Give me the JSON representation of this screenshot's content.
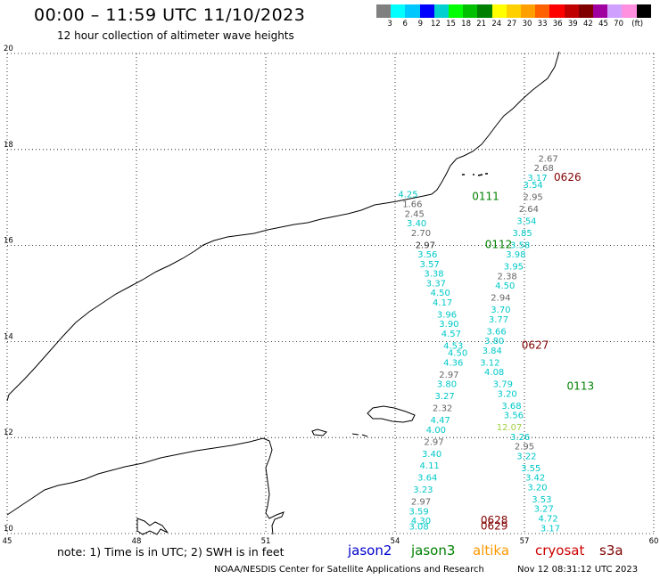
{
  "header": {
    "title": "00:00 – 11:59 UTC 11/10/2023",
    "subtitle": "12 hour collection of altimeter wave heights"
  },
  "color_scale": {
    "colors": [
      "#808080",
      "#00ffff",
      "#00c8ff",
      "#0000ff",
      "#00d0d0",
      "#00ff00",
      "#00c000",
      "#008000",
      "#ffff00",
      "#ffd000",
      "#ffa000",
      "#ff6000",
      "#ff0000",
      "#c00000",
      "#800000",
      "#a000a0",
      "#d0a0ff",
      "#ff90e0",
      "#000000"
    ],
    "labels": [
      "3",
      "6",
      "9",
      "12",
      "15",
      "18",
      "21",
      "24",
      "27",
      "30",
      "33",
      "36",
      "39",
      "42",
      "45",
      "70",
      "(ft)"
    ]
  },
  "axes": {
    "lat_labels": [
      "20",
      "18",
      "16",
      "14",
      "12",
      "10"
    ],
    "lon_labels": [
      "45",
      "48",
      "51",
      "54",
      "57",
      "60"
    ]
  },
  "track_colors": {
    "jason3": "#008000",
    "cryosat": "#800000",
    "cyan": "#00c8c8",
    "gray": "#666666"
  },
  "chart_data": {
    "type": "scatter",
    "x_range": [
      45,
      60
    ],
    "y_range": [
      10,
      20
    ],
    "pass_labels": [
      {
        "text": "0626",
        "lon": 58.0,
        "lat": 17.35,
        "mission": "cryosat"
      },
      {
        "text": "0111",
        "lon": 56.1,
        "lat": 16.95,
        "mission": "jason3"
      },
      {
        "text": "0112",
        "lon": 56.4,
        "lat": 15.95,
        "mission": "jason3"
      },
      {
        "text": "0627",
        "lon": 57.25,
        "lat": 13.85,
        "mission": "cryosat"
      },
      {
        "text": "0113",
        "lon": 58.3,
        "lat": 13.0,
        "mission": "jason3"
      },
      {
        "text": "0628",
        "lon": 56.3,
        "lat": 10.2,
        "mission": "cryosat"
      },
      {
        "text": "0629",
        "lon": 56.3,
        "lat": 10.08,
        "mission": "cryosat"
      }
    ],
    "observations": [
      {
        "v": "2.67",
        "lon": 57.55,
        "lat": 17.75,
        "c": "gray"
      },
      {
        "v": "2.68",
        "lon": 57.45,
        "lat": 17.55,
        "c": "gray"
      },
      {
        "v": "3.17",
        "lon": 57.3,
        "lat": 17.35,
        "c": "cyan"
      },
      {
        "v": "3.54",
        "lon": 57.2,
        "lat": 17.2,
        "c": "cyan"
      },
      {
        "v": "2.95",
        "lon": 57.2,
        "lat": 16.95,
        "c": "gray"
      },
      {
        "v": "2.64",
        "lon": 57.1,
        "lat": 16.7,
        "c": "gray"
      },
      {
        "v": "3.54",
        "lon": 57.05,
        "lat": 16.45,
        "c": "cyan"
      },
      {
        "v": "3.85",
        "lon": 56.95,
        "lat": 16.2,
        "c": "cyan"
      },
      {
        "v": "3.58",
        "lon": 56.9,
        "lat": 15.95,
        "c": "cyan"
      },
      {
        "v": "3.98",
        "lon": 56.8,
        "lat": 15.75,
        "c": "cyan"
      },
      {
        "v": "3.95",
        "lon": 56.75,
        "lat": 15.5,
        "c": "cyan"
      },
      {
        "v": "2.38",
        "lon": 56.6,
        "lat": 15.3,
        "c": "gray"
      },
      {
        "v": "4.50",
        "lon": 56.55,
        "lat": 15.1,
        "c": "cyan"
      },
      {
        "v": "2.94",
        "lon": 56.45,
        "lat": 14.85,
        "c": "gray"
      },
      {
        "v": "3.70",
        "lon": 56.45,
        "lat": 14.6,
        "c": "cyan"
      },
      {
        "v": "3.77",
        "lon": 56.4,
        "lat": 14.4,
        "c": "cyan"
      },
      {
        "v": "3.66",
        "lon": 56.35,
        "lat": 14.15,
        "c": "cyan"
      },
      {
        "v": "3.80",
        "lon": 56.3,
        "lat": 13.95,
        "c": "cyan"
      },
      {
        "v": "3.84",
        "lon": 56.25,
        "lat": 13.75,
        "c": "cyan"
      },
      {
        "v": "3.12",
        "lon": 56.2,
        "lat": 13.5,
        "c": "cyan"
      },
      {
        "v": "4.08",
        "lon": 56.3,
        "lat": 13.3,
        "c": "cyan"
      },
      {
        "v": "3.79",
        "lon": 56.5,
        "lat": 13.05,
        "c": "cyan"
      },
      {
        "v": "3.20",
        "lon": 56.6,
        "lat": 12.85,
        "c": "cyan"
      },
      {
        "v": "3.68",
        "lon": 56.7,
        "lat": 12.6,
        "c": "cyan"
      },
      {
        "v": "3.56",
        "lon": 56.75,
        "lat": 12.4,
        "c": "cyan"
      },
      {
        "v": "12.07",
        "lon": 56.65,
        "lat": 12.15,
        "c": "yellowgreen"
      },
      {
        "v": "3.26",
        "lon": 56.9,
        "lat": 11.95,
        "c": "cyan"
      },
      {
        "v": "2.95",
        "lon": 57.0,
        "lat": 11.75,
        "c": "gray"
      },
      {
        "v": "3.22",
        "lon": 57.05,
        "lat": 11.55,
        "c": "cyan"
      },
      {
        "v": "3.55",
        "lon": 57.15,
        "lat": 11.3,
        "c": "cyan"
      },
      {
        "v": "3.42",
        "lon": 57.25,
        "lat": 11.1,
        "c": "cyan"
      },
      {
        "v": "3.20",
        "lon": 57.3,
        "lat": 10.9,
        "c": "cyan"
      },
      {
        "v": "3.53",
        "lon": 57.4,
        "lat": 10.65,
        "c": "cyan"
      },
      {
        "v": "3.27",
        "lon": 57.45,
        "lat": 10.45,
        "c": "cyan"
      },
      {
        "v": "4.72",
        "lon": 57.55,
        "lat": 10.25,
        "c": "cyan"
      },
      {
        "v": "3.17",
        "lon": 57.6,
        "lat": 10.05,
        "c": "cyan"
      },
      {
        "v": "4.25",
        "lon": 54.3,
        "lat": 17.0,
        "c": "cyan"
      },
      {
        "v": "1.66",
        "lon": 54.4,
        "lat": 16.8,
        "c": "gray"
      },
      {
        "v": "2.45",
        "lon": 54.45,
        "lat": 16.6,
        "c": "gray"
      },
      {
        "v": "3.40",
        "lon": 54.5,
        "lat": 16.4,
        "c": "cyan"
      },
      {
        "v": "2.70",
        "lon": 54.6,
        "lat": 16.2,
        "c": "gray"
      },
      {
        "v": "2.97",
        "lon": 54.7,
        "lat": 15.95,
        "c": "black"
      },
      {
        "v": "3.56",
        "lon": 54.75,
        "lat": 15.75,
        "c": "cyan"
      },
      {
        "v": "3.57",
        "lon": 54.8,
        "lat": 15.55,
        "c": "cyan"
      },
      {
        "v": "3.38",
        "lon": 54.9,
        "lat": 15.35,
        "c": "cyan"
      },
      {
        "v": "3.37",
        "lon": 54.95,
        "lat": 15.15,
        "c": "cyan"
      },
      {
        "v": "4.50",
        "lon": 55.05,
        "lat": 14.95,
        "c": "cyan"
      },
      {
        "v": "4.17",
        "lon": 55.1,
        "lat": 14.75,
        "c": "cyan"
      },
      {
        "v": "3.96",
        "lon": 55.2,
        "lat": 14.5,
        "c": "cyan"
      },
      {
        "v": "3.90",
        "lon": 55.25,
        "lat": 14.3,
        "c": "cyan"
      },
      {
        "v": "4.57",
        "lon": 55.3,
        "lat": 14.1,
        "c": "cyan"
      },
      {
        "v": "4.53",
        "lon": 55.35,
        "lat": 13.85,
        "c": "cyan"
      },
      {
        "v": "4.50",
        "lon": 55.45,
        "lat": 13.7,
        "c": "cyan"
      },
      {
        "v": "4.36",
        "lon": 55.35,
        "lat": 13.5,
        "c": "cyan"
      },
      {
        "v": "2.97",
        "lon": 55.25,
        "lat": 13.25,
        "c": "gray"
      },
      {
        "v": "3.80",
        "lon": 55.2,
        "lat": 13.05,
        "c": "cyan"
      },
      {
        "v": "3.27",
        "lon": 55.15,
        "lat": 12.8,
        "c": "cyan"
      },
      {
        "v": "2.32",
        "lon": 55.1,
        "lat": 12.55,
        "c": "gray"
      },
      {
        "v": "4.47",
        "lon": 55.05,
        "lat": 12.3,
        "c": "cyan"
      },
      {
        "v": "4.00",
        "lon": 54.95,
        "lat": 12.1,
        "c": "cyan"
      },
      {
        "v": "2.97",
        "lon": 54.9,
        "lat": 11.85,
        "c": "gray"
      },
      {
        "v": "3.40",
        "lon": 54.85,
        "lat": 11.6,
        "c": "cyan"
      },
      {
        "v": "4.11",
        "lon": 54.8,
        "lat": 11.35,
        "c": "cyan"
      },
      {
        "v": "3.64",
        "lon": 54.75,
        "lat": 11.1,
        "c": "cyan"
      },
      {
        "v": "3.23",
        "lon": 54.65,
        "lat": 10.85,
        "c": "cyan"
      },
      {
        "v": "2.97",
        "lon": 54.6,
        "lat": 10.6,
        "c": "gray"
      },
      {
        "v": "3.59",
        "lon": 54.55,
        "lat": 10.4,
        "c": "cyan"
      },
      {
        "v": "4.30",
        "lon": 54.6,
        "lat": 10.2,
        "c": "cyan"
      },
      {
        "v": "3.08",
        "lon": 54.55,
        "lat": 10.08,
        "c": "cyan"
      }
    ]
  },
  "footer": {
    "note": "note: 1) Time is in UTC; 2) SWH is in feet",
    "missions": [
      {
        "name": "jason2",
        "color": "#0000cc"
      },
      {
        "name": "jason3",
        "color": "#008000"
      },
      {
        "name": "altika",
        "color": "#ff9900"
      },
      {
        "name": "cryosat",
        "color": "#cc0000"
      },
      {
        "name": "s3a",
        "color": "#800000"
      }
    ],
    "credit": "NOAA/NESDIS Center for Satellite Applications and Research",
    "timestamp": "Nov 12 08:31:12 UTC 2023"
  }
}
